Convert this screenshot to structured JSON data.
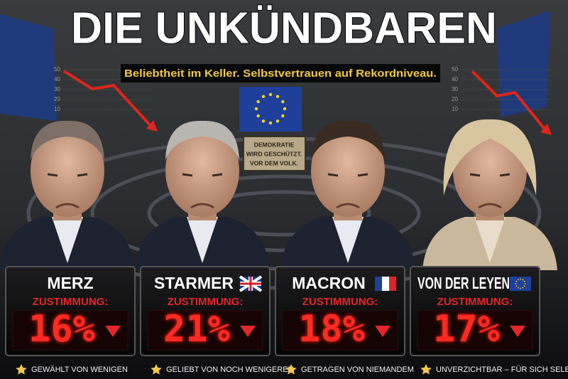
{
  "header": {
    "title": "DIE UNKÜNDBAREN",
    "subtitle": "Beliebtheit im Keller. Selbstvertrauen auf Rekordniveau."
  },
  "sign": {
    "lines": [
      "DEMOKRATIE",
      "WIRD GESCHÜTZT.",
      "VOR DEM VOLK."
    ]
  },
  "background_charts": [
    {
      "ticks": [
        "50",
        "40",
        "30",
        "20",
        "10"
      ]
    },
    {
      "ticks": [
        "50",
        "40",
        "30",
        "20",
        "10"
      ]
    }
  ],
  "panels": [
    {
      "name": "MERZ",
      "flag": null,
      "label": "ZUSTIMMUNG:",
      "value": "16%",
      "caption": "GEWÄHLT VON WENIGEN"
    },
    {
      "name": "STARMER",
      "flag": "uk",
      "label": "ZUSTIMMUNG:",
      "value": "21%",
      "caption": "GELIEBT VON NOCH WENIGEREN"
    },
    {
      "name": "MACRON",
      "flag": "fr",
      "label": "ZUSTIMMUNG:",
      "value": "18%",
      "caption": "GETRAGEN VON NIEMANDEM"
    },
    {
      "name": "VON DER LEYEN",
      "flag": "eu",
      "label": "ZUSTIMMUNG:",
      "value": "17%",
      "caption": "UNVERZICHTBAR – FÜR SICH SELBST"
    }
  ]
}
